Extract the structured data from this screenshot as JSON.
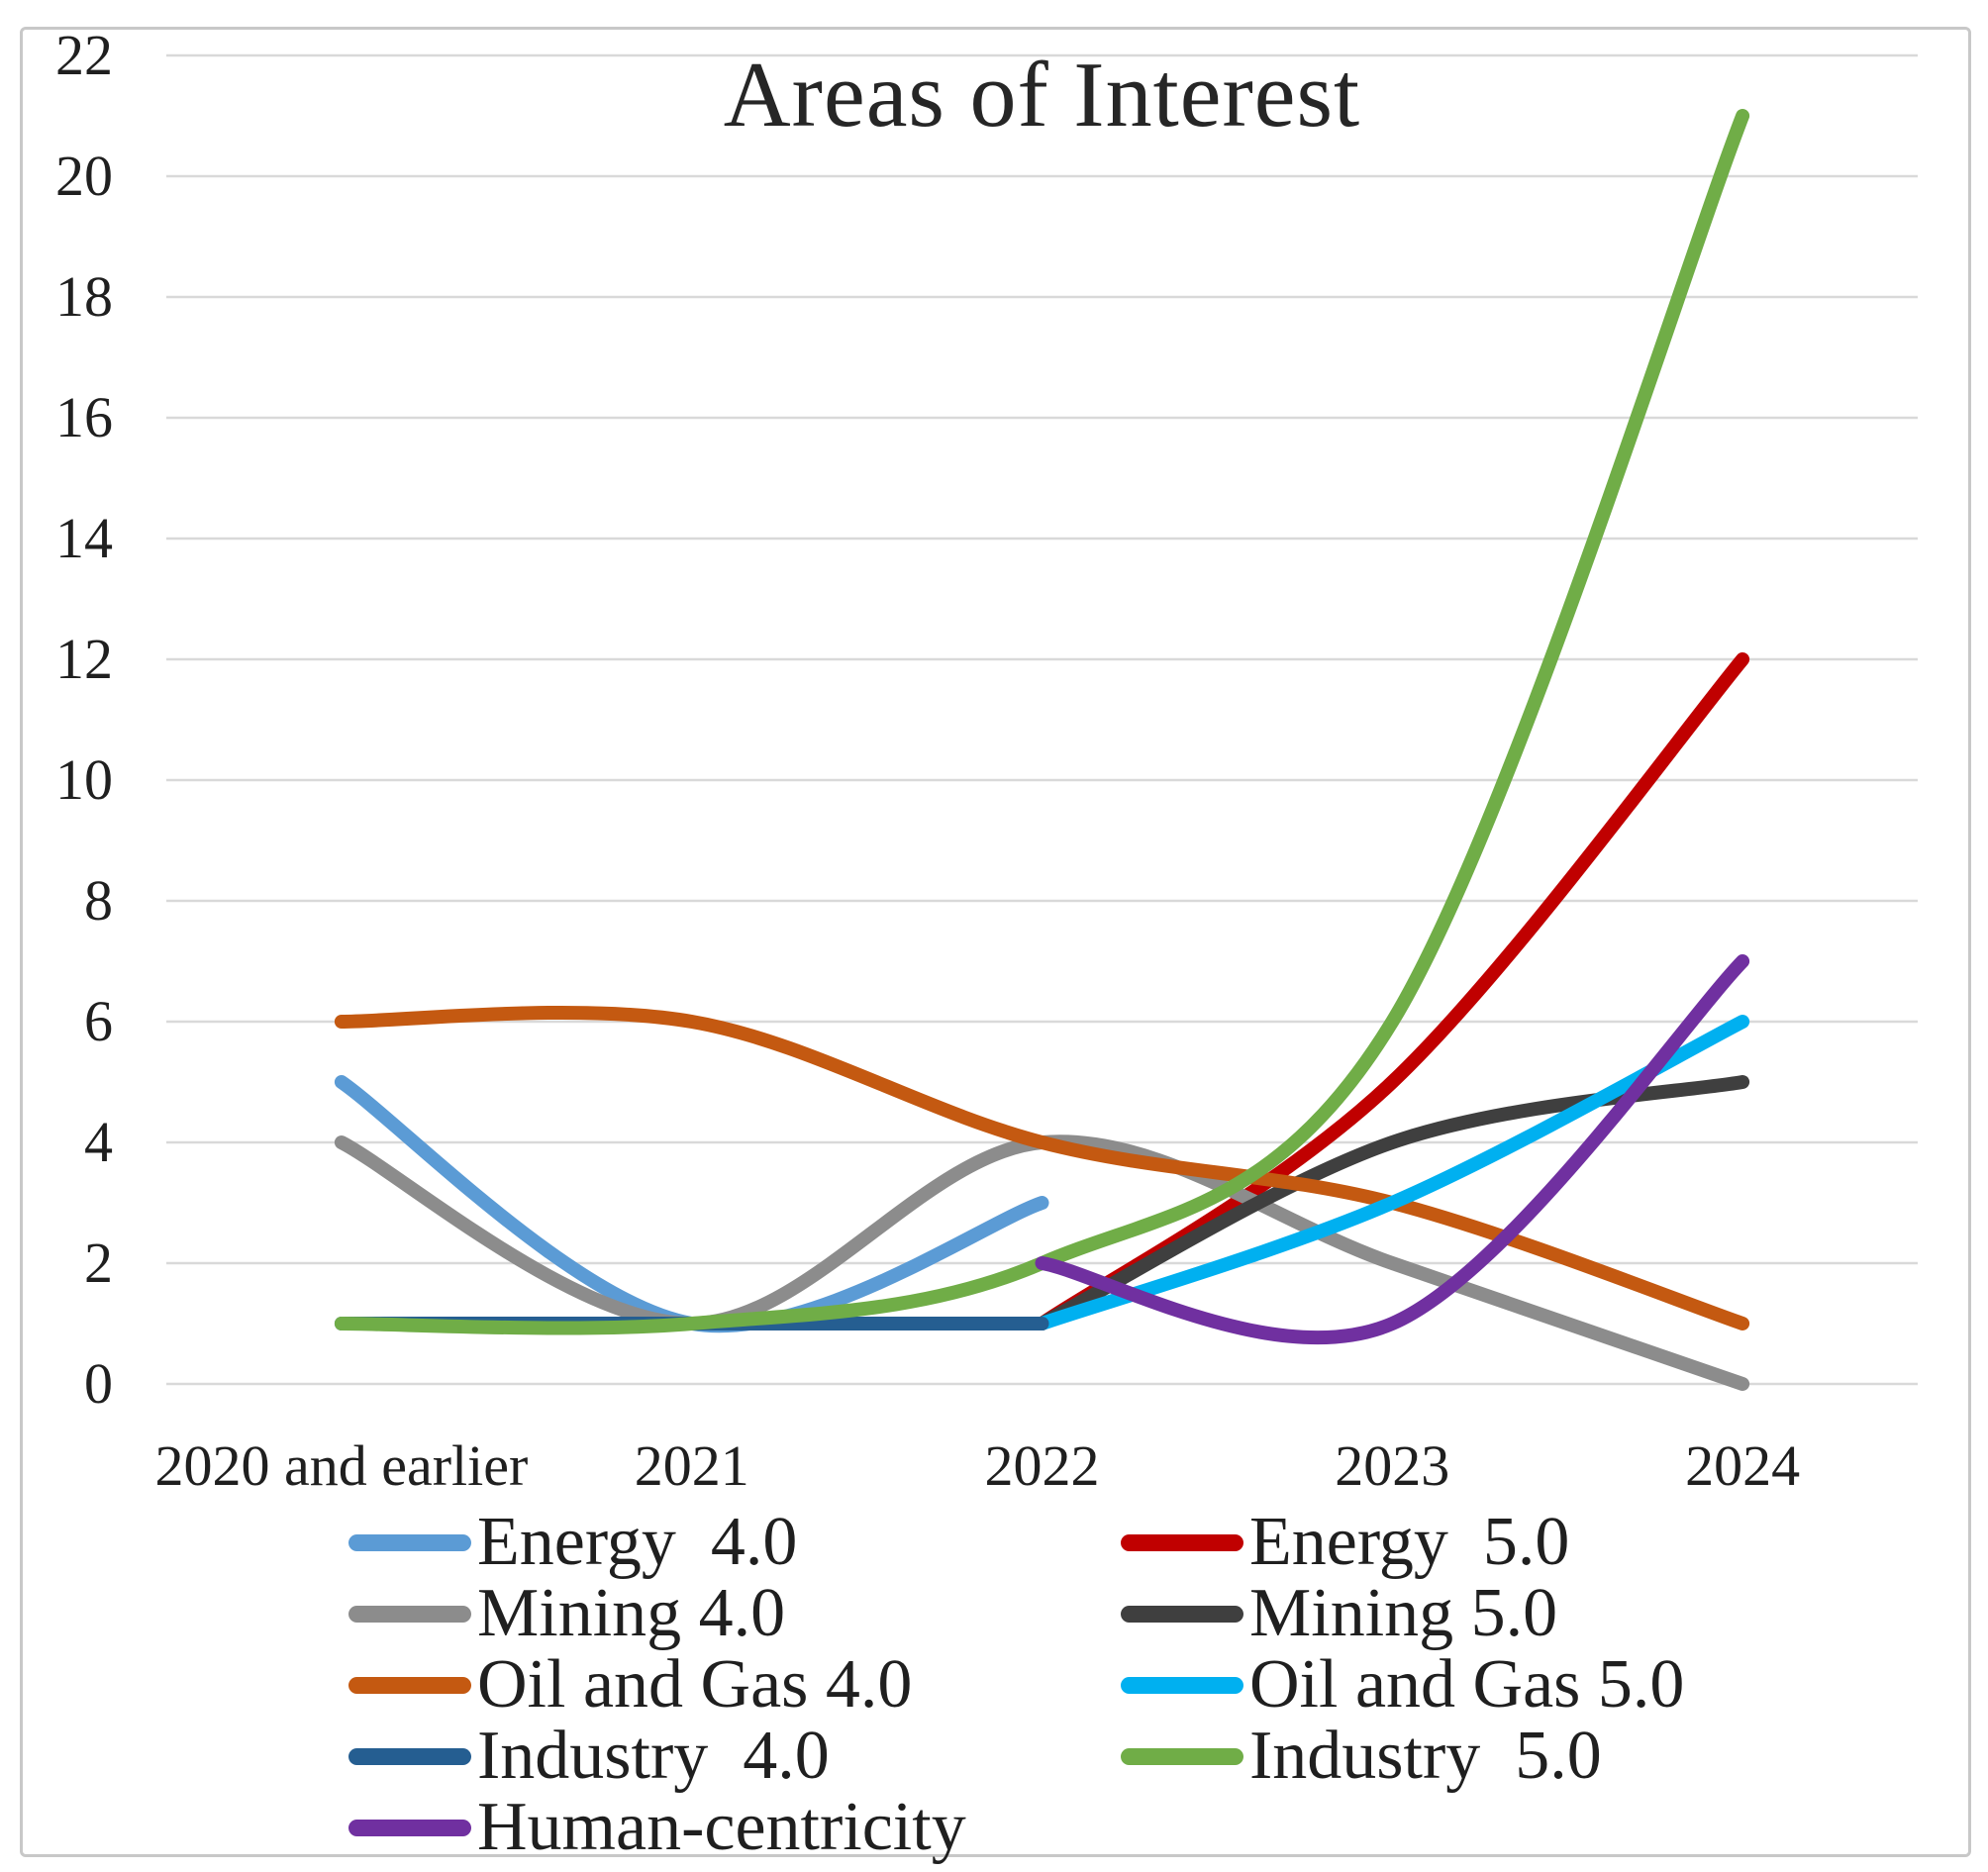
{
  "chart_data": {
    "type": "line",
    "title": "Areas of Interest",
    "smoothed": true,
    "categories": [
      "2020 and earlier",
      "2021",
      "2022",
      "2023",
      "2024"
    ],
    "y_axis": {
      "min": 0,
      "max": 22,
      "step": 2,
      "tick_labels": [
        "0",
        "2",
        "4",
        "6",
        "8",
        "10",
        "12",
        "14",
        "16",
        "18",
        "20",
        "22"
      ]
    },
    "grid": "horizontal",
    "legend_position": "bottom-two-columns",
    "series": [
      {
        "name": "Energy  4.0",
        "color": "#5B9BD5",
        "values": [
          5,
          1,
          3,
          null,
          null
        ]
      },
      {
        "name": "Energy  5.0",
        "color": "#C00000",
        "values": [
          null,
          null,
          1,
          5,
          12
        ]
      },
      {
        "name": "Mining 4.0",
        "color": "#8C8C8C",
        "values": [
          4,
          1,
          4,
          2,
          0
        ]
      },
      {
        "name": "Mining 5.0",
        "color": "#3F3F3F",
        "values": [
          null,
          null,
          1,
          4,
          5
        ]
      },
      {
        "name": "Oil and Gas 4.0",
        "color": "#C45911",
        "values": [
          6,
          6,
          4,
          3,
          1
        ]
      },
      {
        "name": "Oil and Gas 5.0",
        "color": "#00B0F0",
        "values": [
          null,
          null,
          1,
          3,
          6
        ]
      },
      {
        "name": "Industry  4.0",
        "color": "#255E91",
        "values": [
          1,
          1,
          1,
          null,
          null
        ]
      },
      {
        "name": "Industry  5.0",
        "color": "#70AD47",
        "values": [
          1,
          1,
          2,
          6,
          21
        ]
      },
      {
        "name": "Human-centricity",
        "color": "#7030A0",
        "values": [
          null,
          null,
          2,
          1,
          7
        ]
      }
    ],
    "colors": {
      "gridline": "#D9D9D9",
      "chart_border": "#C8C8C8",
      "title_text": "#262626",
      "axis_text": "#1F1F1F",
      "background": "#FFFFFF"
    }
  }
}
